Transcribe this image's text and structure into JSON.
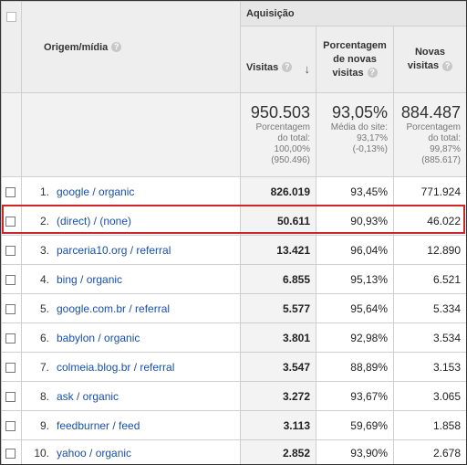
{
  "header": {
    "group": "Aquisição",
    "source_column": "Origem/mídia",
    "columns": [
      "Visitas",
      "Porcentagem de novas visitas",
      "Novas visitas"
    ]
  },
  "totals": [
    {
      "value": "950.503",
      "note": "Porcentagem do total:",
      "percent": "100,00%",
      "reference": "(950.496)"
    },
    {
      "value": "93,05%",
      "note": "Média do site:",
      "percent": "93,17%",
      "reference": "(-0,13%)"
    },
    {
      "value": "884.487",
      "note": "Porcentagem do total:",
      "percent": "99,87%",
      "reference": "(885.617)"
    }
  ],
  "rows": [
    {
      "index": "1.",
      "source": "google / organic",
      "visits": "826.019",
      "pct_new": "93,45%",
      "new_visits": "771.924"
    },
    {
      "index": "2.",
      "source": "(direct) / (none)",
      "visits": "50.611",
      "pct_new": "90,93%",
      "new_visits": "46.022"
    },
    {
      "index": "3.",
      "source": "parceria10.org / referral",
      "visits": "13.421",
      "pct_new": "96,04%",
      "new_visits": "12.890"
    },
    {
      "index": "4.",
      "source": "bing / organic",
      "visits": "6.855",
      "pct_new": "95,13%",
      "new_visits": "6.521"
    },
    {
      "index": "5.",
      "source": "google.com.br / referral",
      "visits": "5.577",
      "pct_new": "95,64%",
      "new_visits": "5.334"
    },
    {
      "index": "6.",
      "source": "babylon / organic",
      "visits": "3.801",
      "pct_new": "92,98%",
      "new_visits": "3.534"
    },
    {
      "index": "7.",
      "source": "colmeia.blog.br / referral",
      "visits": "3.547",
      "pct_new": "88,89%",
      "new_visits": "3.153"
    },
    {
      "index": "8.",
      "source": "ask / organic",
      "visits": "3.272",
      "pct_new": "93,67%",
      "new_visits": "3.065"
    },
    {
      "index": "9.",
      "source": "feedburner / feed",
      "visits": "3.113",
      "pct_new": "59,69%",
      "new_visits": "1.858"
    },
    {
      "index": "10.",
      "source": "yahoo / organic",
      "visits": "2.852",
      "pct_new": "93,90%",
      "new_visits": "2.678"
    }
  ]
}
